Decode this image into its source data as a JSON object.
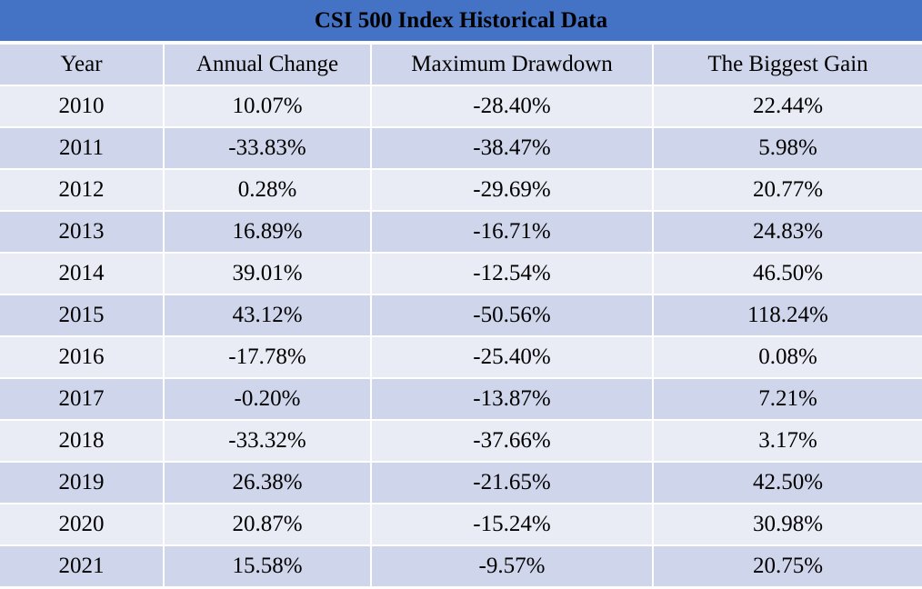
{
  "chart_data": {
    "type": "table",
    "title": "CSI 500 Index Historical Data",
    "columns": [
      "Year",
      "Annual Change",
      "Maximum Drawdown",
      "The Biggest Gain"
    ],
    "rows": [
      [
        "2010",
        "10.07%",
        "-28.40%",
        "22.44%"
      ],
      [
        "2011",
        "-33.83%",
        "-38.47%",
        "5.98%"
      ],
      [
        "2012",
        "0.28%",
        "-29.69%",
        "20.77%"
      ],
      [
        "2013",
        "16.89%",
        "-16.71%",
        "24.83%"
      ],
      [
        "2014",
        "39.01%",
        "-12.54%",
        "46.50%"
      ],
      [
        "2015",
        "43.12%",
        "-50.56%",
        "118.24%"
      ],
      [
        "2016",
        "-17.78%",
        "-25.40%",
        "0.08%"
      ],
      [
        "2017",
        "-0.20%",
        "-13.87%",
        "7.21%"
      ],
      [
        "2018",
        "-33.32%",
        "-37.66%",
        "3.17%"
      ],
      [
        "2019",
        "26.38%",
        "-21.65%",
        "42.50%"
      ],
      [
        "2020",
        "20.87%",
        "-15.24%",
        "30.98%"
      ],
      [
        "2021",
        "15.58%",
        "-9.57%",
        "20.75%"
      ]
    ]
  },
  "colors": {
    "title_bg": "#4472c4",
    "header_bg": "#cfd5ea",
    "row_light": "#e9ebf5",
    "row_dark": "#cfd5ea"
  }
}
